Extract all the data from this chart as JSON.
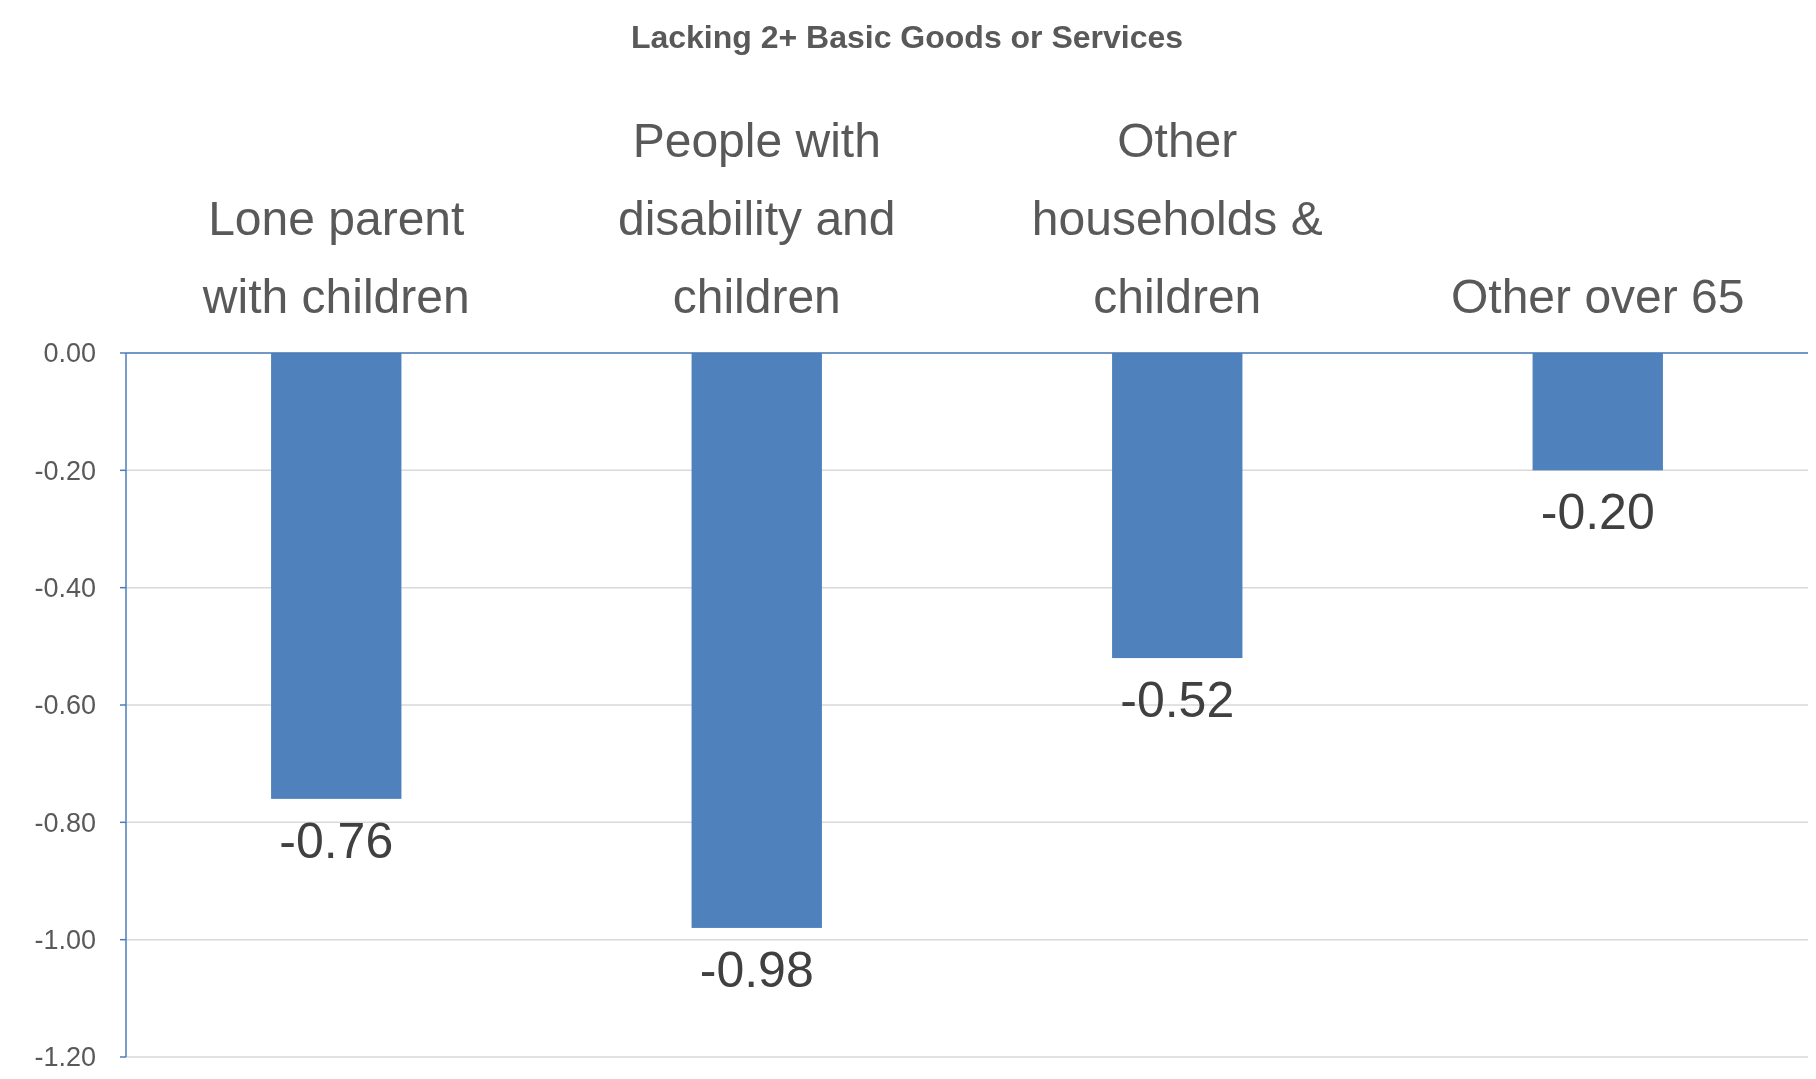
{
  "chart_data": {
    "type": "bar",
    "title": "Lacking 2+ Basic Goods or Services",
    "categories": [
      "Lone parent with children",
      "People with disability and children",
      "Other households & children",
      "Other over 65"
    ],
    "values": [
      -0.76,
      -0.98,
      -0.52,
      -0.2
    ],
    "value_labels": [
      "-0.76",
      "-0.98",
      "-0.52",
      "-0.20"
    ],
    "color": "#4f81bd",
    "ylim": [
      -1.2,
      0
    ],
    "yticks": [
      {
        "value": 0,
        "label": "0.00"
      },
      {
        "value": -0.2,
        "label": "-0.20"
      },
      {
        "value": -0.4,
        "label": "-0.40"
      },
      {
        "value": -0.6,
        "label": "-0.60"
      },
      {
        "value": -0.8,
        "label": "-0.80"
      },
      {
        "value": -1,
        "label": "-1.00"
      },
      {
        "value": -1.2,
        "label": "-1.20"
      }
    ],
    "grid": "y"
  }
}
